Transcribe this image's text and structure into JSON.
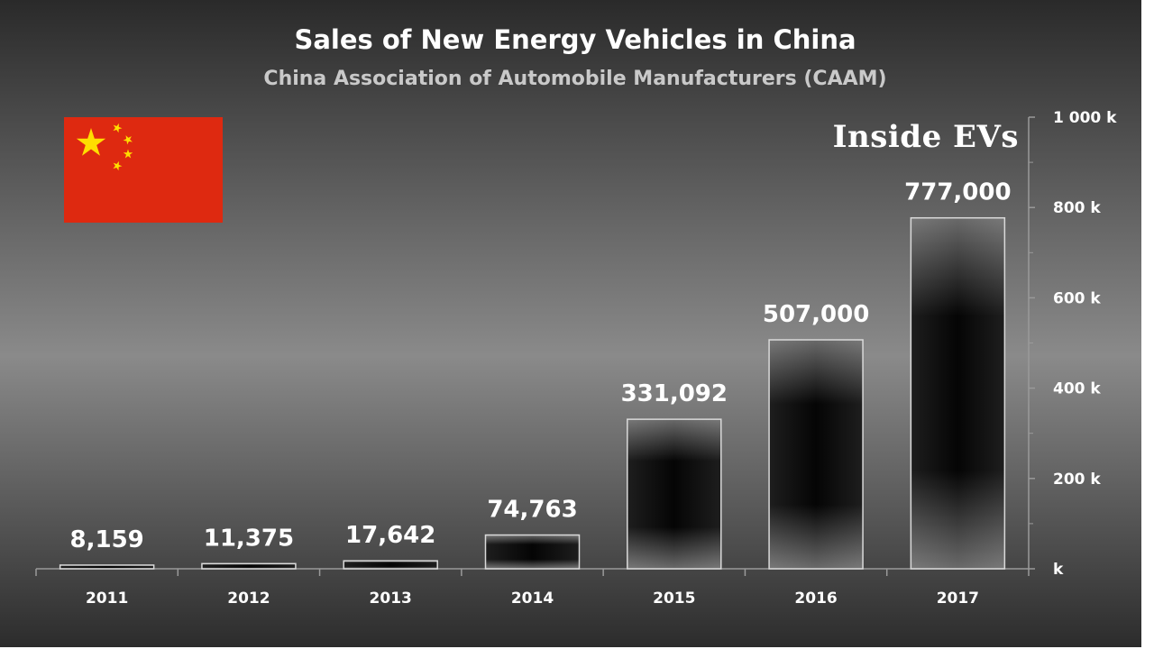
{
  "chart_data": {
    "type": "bar",
    "title": "Sales of New Energy Vehicles in China",
    "subtitle": "China Association of Automobile Manufacturers (CAAM)",
    "categories": [
      "2011",
      "2012",
      "2013",
      "2014",
      "2015",
      "2016",
      "2017"
    ],
    "values": [
      8159,
      11375,
      17642,
      74763,
      331092,
      507000,
      777000
    ],
    "value_labels": [
      "8,159",
      "11,375",
      "17,642",
      "74,763",
      "331,092",
      "507,000",
      "777,000"
    ],
    "y_ticks": [
      {
        "value": 0,
        "label": "k"
      },
      {
        "value": 200000,
        "label": "200 k"
      },
      {
        "value": 400000,
        "label": "400 k"
      },
      {
        "value": 600000,
        "label": "600 k"
      },
      {
        "value": 800000,
        "label": "800 k"
      },
      {
        "value": 1000000,
        "label": "1 000 k"
      }
    ],
    "ylim": [
      0,
      1000000
    ],
    "y_axis_side": "right",
    "grid": false,
    "legend": "none"
  },
  "branding": {
    "logo_text": "Inside EVs"
  },
  "flag": {
    "country": "China",
    "field_color": "#de2910",
    "star_color": "#ffde00"
  },
  "colors": {
    "background_top": "#2a2a2a",
    "background_mid": "#8a8a8a",
    "background_bottom": "#2c2c2c",
    "bar_dark": "#050505",
    "bar_light": "#6a6a6a"
  }
}
